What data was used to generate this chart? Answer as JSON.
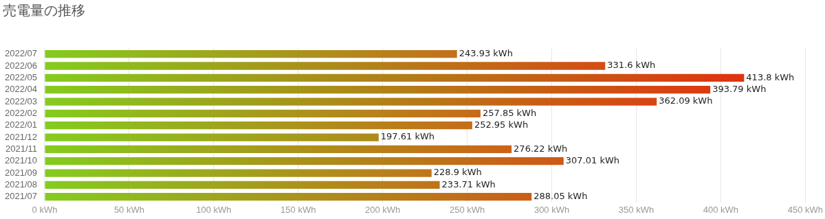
{
  "chart_data": {
    "type": "bar",
    "orientation": "horizontal",
    "title": "売電量の推移",
    "categories": [
      "2022/07",
      "2022/06",
      "2022/05",
      "2022/04",
      "2022/03",
      "2022/02",
      "2022/01",
      "2021/12",
      "2021/11",
      "2021/10",
      "2021/09",
      "2021/08",
      "2021/07"
    ],
    "values": [
      243.93,
      331.6,
      413.8,
      393.79,
      362.09,
      257.85,
      252.95,
      197.61,
      276.22,
      307.01,
      228.9,
      233.71,
      288.05
    ],
    "colors": [
      "#c4701a",
      "#d44c14",
      "#e03210",
      "#dc3a10",
      "#d84412",
      "#c86a18",
      "#c66c18",
      "#b08a1a",
      "#cc6216",
      "#d05616",
      "#bf7618",
      "#c27218",
      "#cc5e16"
    ],
    "value_labels": [
      "243.93 kWh",
      "331.6 kWh",
      "413.8 kWh",
      "393.79 kWh",
      "362.09 kWh",
      "257.85 kWh",
      "252.95 kWh",
      "197.61 kWh",
      "276.22 kWh",
      "307.01 kWh",
      "228.9 kWh",
      "233.71 kWh",
      "288.05 kWh"
    ],
    "xlim": [
      0,
      450
    ],
    "xticks": [
      {
        "value": 0,
        "label": "0 kWh"
      },
      {
        "value": 50,
        "label": "50 kWh"
      },
      {
        "value": 100,
        "label": "100 kWh"
      },
      {
        "value": 150,
        "label": "150 kWh"
      },
      {
        "value": 200,
        "label": "200 kWh"
      },
      {
        "value": 250,
        "label": "250 kWh"
      },
      {
        "value": 300,
        "label": "300 kWh"
      },
      {
        "value": 350,
        "label": "350 kWh"
      },
      {
        "value": 400,
        "label": "400 kWh"
      },
      {
        "value": 450,
        "label": "450 kWh"
      }
    ],
    "grid": "x",
    "legend": false
  }
}
